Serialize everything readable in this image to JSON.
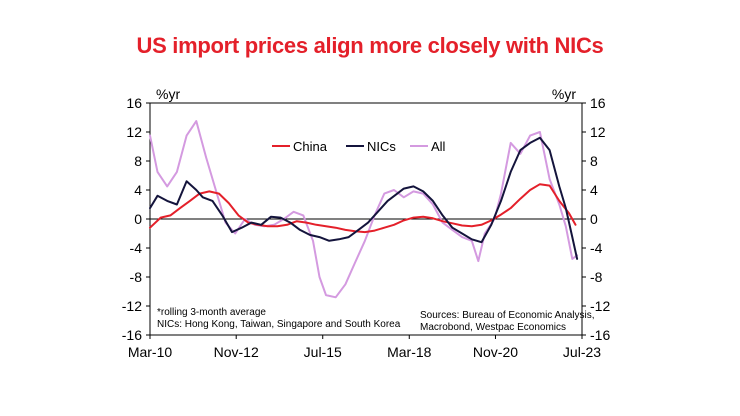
{
  "title": "US import prices align more closely with NICs",
  "chart_data": {
    "type": "line",
    "ylabel_left": "%yr",
    "ylabel_right": "%yr",
    "ylim": [
      -16,
      16
    ],
    "yticks": [
      16,
      12,
      8,
      4,
      0,
      -4,
      -8,
      -12,
      -16
    ],
    "right_yticks_labels": [
      "16",
      "12",
      "8",
      "4",
      "0",
      "-4",
      "-8",
      "-12",
      "-16"
    ],
    "xtick_labels": [
      "Mar-10",
      "Nov-12",
      "Jul-15",
      "Mar-18",
      "Nov-20",
      "Jul-23"
    ],
    "xtick_dates": [
      2010.17,
      2012.83,
      2015.5,
      2018.17,
      2020.83,
      2023.5
    ],
    "xlim": [
      2010.17,
      2023.5
    ],
    "grid": false,
    "legend_position": "top-center",
    "colors": {
      "China": "#e4202a",
      "NICs": "#14143c",
      "All": "#d49ae0"
    },
    "series": [
      {
        "name": "China",
        "x": [
          2010.17,
          2010.5,
          2010.8,
          2011.1,
          2011.4,
          2011.7,
          2012.0,
          2012.3,
          2012.6,
          2012.9,
          2013.2,
          2013.5,
          2013.8,
          2014.1,
          2014.4,
          2014.7,
          2015.0,
          2015.3,
          2015.6,
          2015.9,
          2016.2,
          2016.5,
          2016.8,
          2017.1,
          2017.4,
          2017.7,
          2018.0,
          2018.3,
          2018.6,
          2018.9,
          2019.2,
          2019.5,
          2019.8,
          2020.1,
          2020.4,
          2020.7,
          2021.0,
          2021.3,
          2021.6,
          2021.9,
          2022.2,
          2022.5,
          2022.8,
          2023.1,
          2023.3
        ],
        "y": [
          -1.2,
          0.2,
          0.5,
          1.5,
          2.5,
          3.5,
          3.8,
          3.5,
          2.2,
          0.5,
          -0.5,
          -0.8,
          -1.0,
          -1.0,
          -0.8,
          -0.3,
          -0.5,
          -0.8,
          -1.0,
          -1.2,
          -1.5,
          -1.7,
          -1.8,
          -1.6,
          -1.2,
          -0.8,
          -0.2,
          0.2,
          0.3,
          0.1,
          -0.3,
          -0.6,
          -0.9,
          -1.0,
          -0.8,
          -0.2,
          0.6,
          1.5,
          2.8,
          4.0,
          4.8,
          4.6,
          2.5,
          0.8,
          -0.8
        ]
      },
      {
        "name": "NICs",
        "x": [
          2010.17,
          2010.4,
          2010.7,
          2011.0,
          2011.3,
          2011.6,
          2011.8,
          2012.1,
          2012.4,
          2012.7,
          2013.0,
          2013.3,
          2013.6,
          2013.9,
          2014.2,
          2014.5,
          2014.8,
          2015.1,
          2015.4,
          2015.7,
          2016.0,
          2016.3,
          2016.6,
          2016.9,
          2017.2,
          2017.5,
          2017.8,
          2018.0,
          2018.3,
          2018.6,
          2018.9,
          2019.2,
          2019.5,
          2019.8,
          2020.1,
          2020.4,
          2020.7,
          2021.0,
          2021.3,
          2021.6,
          2021.9,
          2022.2,
          2022.5,
          2022.8,
          2023.0,
          2023.2,
          2023.35
        ],
        "y": [
          1.5,
          3.2,
          2.5,
          2.0,
          5.2,
          4.0,
          3.0,
          2.5,
          0.5,
          -1.8,
          -1.2,
          -0.5,
          -0.8,
          0.3,
          0.2,
          -0.5,
          -1.5,
          -2.2,
          -2.5,
          -3.0,
          -2.8,
          -2.5,
          -1.5,
          -0.5,
          1.0,
          2.5,
          3.5,
          4.2,
          4.5,
          3.8,
          2.5,
          0.5,
          -1.2,
          -2.0,
          -2.8,
          -3.2,
          -0.8,
          2.5,
          6.5,
          9.5,
          10.5,
          11.2,
          9.5,
          4.5,
          1.5,
          -2.5,
          -5.5
        ]
      },
      {
        "name": "All",
        "x": [
          2010.17,
          2010.4,
          2010.7,
          2011.0,
          2011.3,
          2011.6,
          2011.9,
          2012.2,
          2012.5,
          2012.8,
          2013.1,
          2013.4,
          2013.7,
          2014.0,
          2014.3,
          2014.6,
          2014.9,
          2015.2,
          2015.4,
          2015.6,
          2015.9,
          2016.2,
          2016.5,
          2016.8,
          2017.1,
          2017.4,
          2017.7,
          2018.0,
          2018.3,
          2018.6,
          2018.9,
          2019.2,
          2019.5,
          2019.8,
          2020.1,
          2020.3,
          2020.5,
          2020.8,
          2021.0,
          2021.3,
          2021.6,
          2021.9,
          2022.2,
          2022.5,
          2022.8,
          2023.0,
          2023.2,
          2023.35
        ],
        "y": [
          11.5,
          6.5,
          4.5,
          6.5,
          11.5,
          13.5,
          8.5,
          4.0,
          -0.5,
          -2.0,
          0.0,
          -0.8,
          -1.0,
          -0.8,
          0.0,
          1.0,
          0.5,
          -3.0,
          -8.0,
          -10.5,
          -10.8,
          -9.0,
          -6.0,
          -3.0,
          0.5,
          3.5,
          4.0,
          3.0,
          3.8,
          3.5,
          2.0,
          -0.5,
          -1.5,
          -2.5,
          -3.0,
          -5.8,
          -2.0,
          0.0,
          3.5,
          10.5,
          9.0,
          11.5,
          12.0,
          5.5,
          2.0,
          -1.0,
          -5.5,
          -5.0
        ]
      }
    ],
    "annotation_left": [
      "*rolling 3-month average",
      "NICs: Hong Kong, Taiwan, Singapore and South Korea"
    ],
    "annotation_right": [
      "Sources: Bureau of Economic Analysis,",
      "Macrobond, Westpac Economics"
    ]
  }
}
